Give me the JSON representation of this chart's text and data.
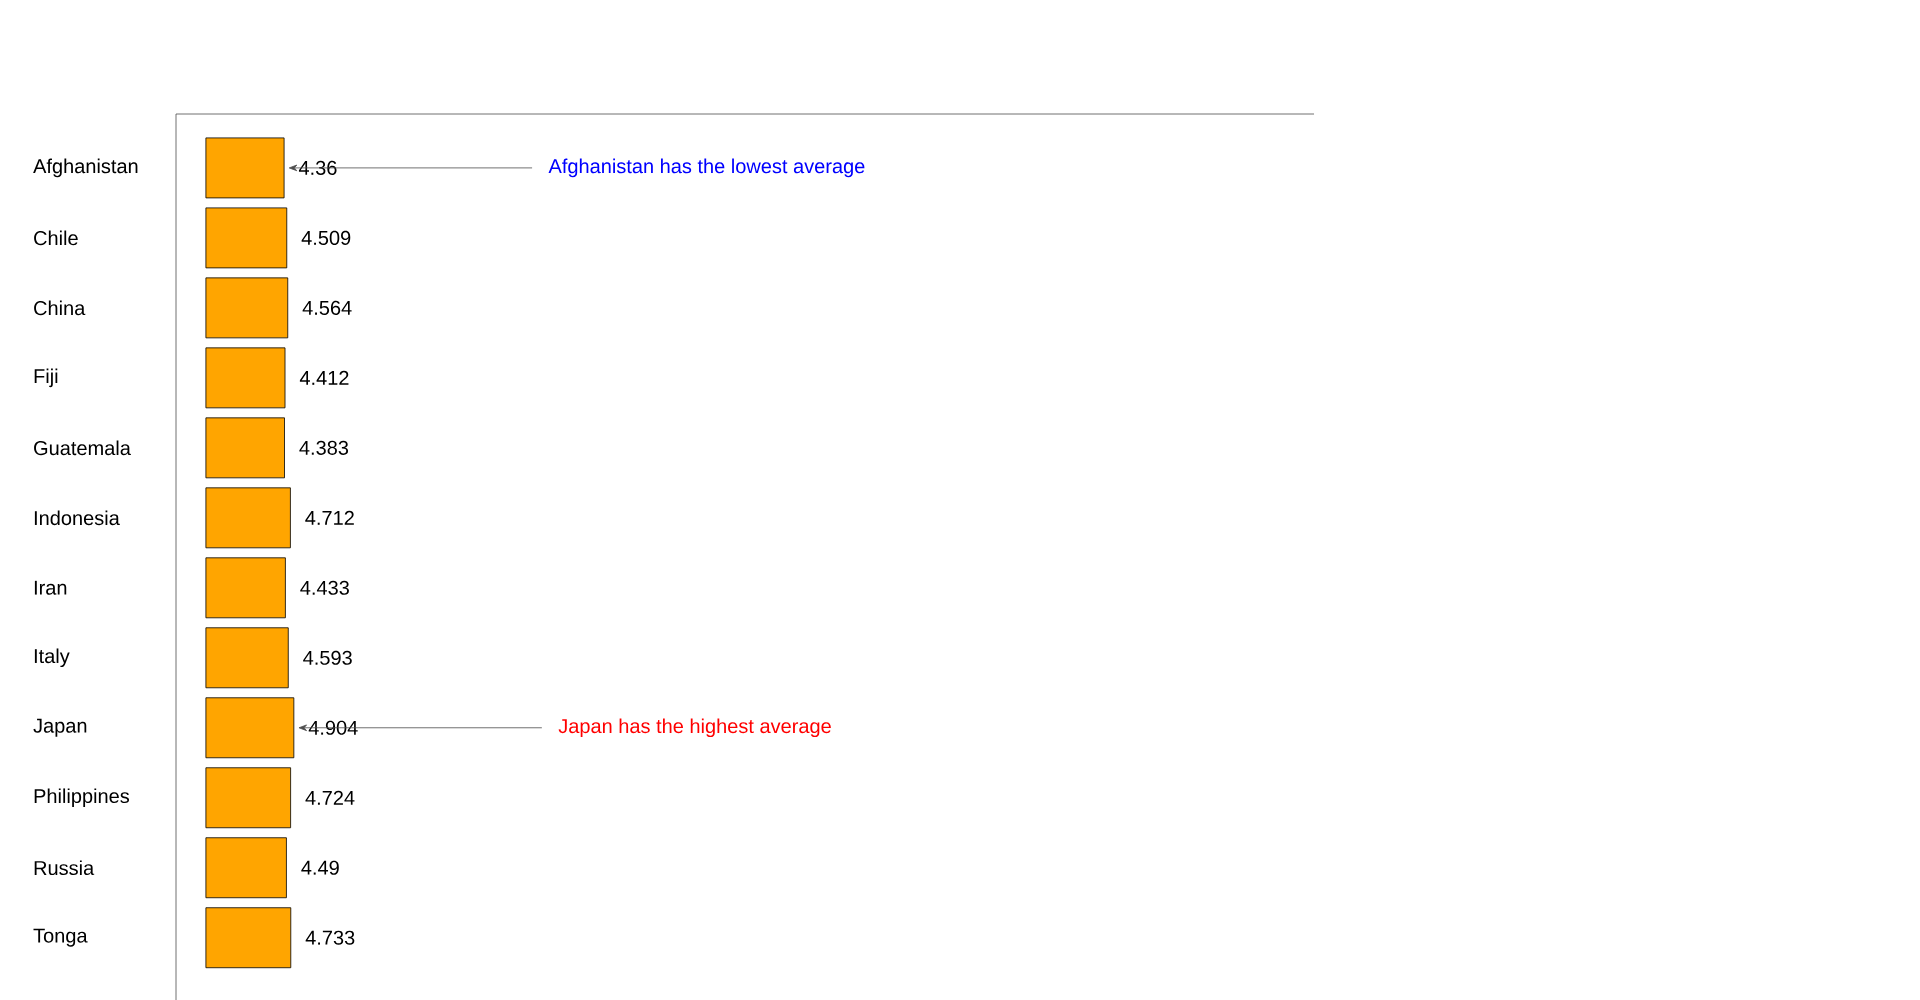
{
  "chart_data": {
    "type": "bar",
    "orientation": "horizontal",
    "categories": [
      "Afghanistan",
      "Chile",
      "China",
      "Fiji",
      "Guatemala",
      "Indonesia",
      "Iran",
      "Italy",
      "Japan",
      "Philippines",
      "Russia",
      "Tonga"
    ],
    "values": [
      4.36,
      4.509,
      4.564,
      4.412,
      4.383,
      4.712,
      4.433,
      4.593,
      4.904,
      4.724,
      4.49,
      4.733
    ],
    "color": "#ffa500",
    "data_labels": true,
    "tick_labels": "y",
    "annotations": [
      {
        "text": "Afghanistan has the lowest average",
        "x": 4.36,
        "y": "Afghanistan"
      },
      {
        "text": "Japan has the highest average",
        "x": 4.904,
        "y": "Japan"
      }
    ]
  }
}
